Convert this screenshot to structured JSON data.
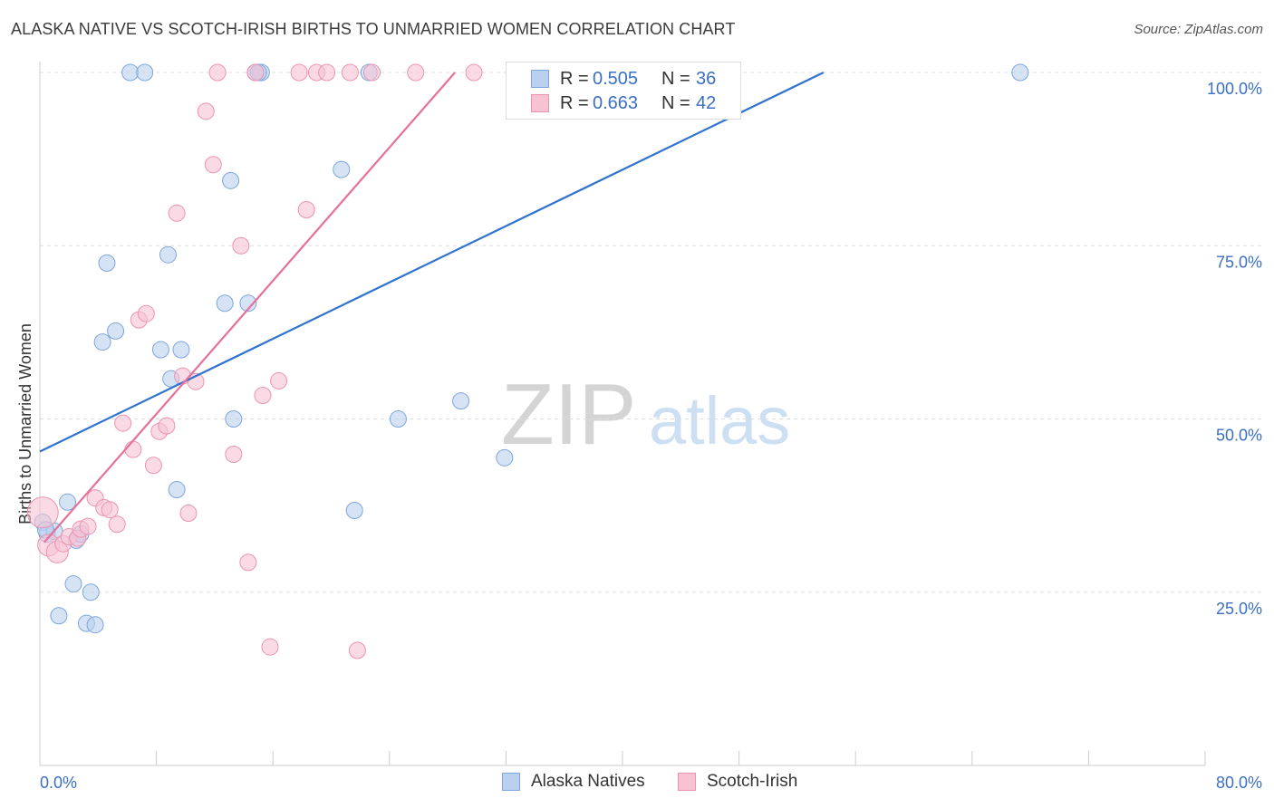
{
  "title": "ALASKA NATIVE VS SCOTCH-IRISH BIRTHS TO UNMARRIED WOMEN CORRELATION CHART",
  "source": "Source: ZipAtlas.com",
  "watermark": {
    "zip": "ZIP",
    "atlas": "atlas"
  },
  "legend_top": {
    "rows": [
      {
        "r_label": "R =",
        "r_value": "0.505",
        "n_label": "N =",
        "n_value": "36"
      },
      {
        "r_label": "R =",
        "r_value": "0.663",
        "n_label": "N =",
        "n_value": "42"
      }
    ]
  },
  "legend_bottom": {
    "items": [
      {
        "label": "Alaska Natives"
      },
      {
        "label": "Scotch-Irish"
      }
    ]
  },
  "colors": {
    "blue_fill": "#b9d0ef",
    "blue_stroke": "#7da6dc",
    "blue_line": "#2f73d0",
    "pink_fill": "#f7c3d3",
    "pink_stroke": "#ec93b0",
    "pink_line": "#e6709a",
    "tick_label": "#3a6fc4",
    "grid": "#dddddd"
  },
  "chart_data": {
    "type": "scatter",
    "title": "ALASKA NATIVE VS SCOTCH-IRISH BIRTHS TO UNMARRIED WOMEN CORRELATION CHART",
    "xlabel": "",
    "ylabel": "Births to Unmarried Women",
    "xlim": [
      0,
      80
    ],
    "ylim": [
      0,
      102
    ],
    "x_tick_labels": [
      "0.0%",
      "80.0%"
    ],
    "y_ticks": [
      25,
      50,
      75,
      100
    ],
    "y_tick_labels": [
      "25.0%",
      "50.0%",
      "75.0%",
      "100.0%"
    ],
    "grid": true,
    "series": [
      {
        "name": "Alaska Natives",
        "color": "blue",
        "r": 0.505,
        "n": 36,
        "trend": {
          "x1": 0.0,
          "y1": 45.3,
          "x2": 53.8,
          "y2": 100.0
        },
        "points": [
          {
            "x": 0.2,
            "y": 35.1,
            "size": 9
          },
          {
            "x": 0.5,
            "y": 33.4,
            "size": 9
          },
          {
            "x": 1.0,
            "y": 33.8,
            "size": 9
          },
          {
            "x": 1.3,
            "y": 21.6,
            "size": 9
          },
          {
            "x": 1.9,
            "y": 38.0,
            "size": 9
          },
          {
            "x": 2.3,
            "y": 26.2,
            "size": 9
          },
          {
            "x": 2.5,
            "y": 32.5,
            "size": 9
          },
          {
            "x": 2.8,
            "y": 33.4,
            "size": 9
          },
          {
            "x": 3.2,
            "y": 20.5,
            "size": 9
          },
          {
            "x": 3.5,
            "y": 25.0,
            "size": 9
          },
          {
            "x": 3.8,
            "y": 20.3,
            "size": 9
          },
          {
            "x": 4.3,
            "y": 61.1,
            "size": 9
          },
          {
            "x": 4.6,
            "y": 72.5,
            "size": 9
          },
          {
            "x": 5.2,
            "y": 62.7,
            "size": 9
          },
          {
            "x": 6.2,
            "y": 100.0,
            "size": 9
          },
          {
            "x": 7.2,
            "y": 100.0,
            "size": 9
          },
          {
            "x": 8.3,
            "y": 60.0,
            "size": 9
          },
          {
            "x": 8.8,
            "y": 73.7,
            "size": 9
          },
          {
            "x": 9.0,
            "y": 55.8,
            "size": 9
          },
          {
            "x": 9.4,
            "y": 39.8,
            "size": 9
          },
          {
            "x": 9.7,
            "y": 60.0,
            "size": 9
          },
          {
            "x": 12.7,
            "y": 66.7,
            "size": 9
          },
          {
            "x": 13.1,
            "y": 84.4,
            "size": 9
          },
          {
            "x": 13.3,
            "y": 50.0,
            "size": 9
          },
          {
            "x": 14.3,
            "y": 66.7,
            "size": 9
          },
          {
            "x": 14.8,
            "y": 100.0,
            "size": 9
          },
          {
            "x": 15.2,
            "y": 100.0,
            "size": 9
          },
          {
            "x": 20.7,
            "y": 86.0,
            "size": 9
          },
          {
            "x": 21.6,
            "y": 36.8,
            "size": 9
          },
          {
            "x": 22.6,
            "y": 100.0,
            "size": 9
          },
          {
            "x": 24.6,
            "y": 50.0,
            "size": 9
          },
          {
            "x": 28.9,
            "y": 52.6,
            "size": 9
          },
          {
            "x": 31.9,
            "y": 44.4,
            "size": 9
          },
          {
            "x": 67.3,
            "y": 100.0,
            "size": 9
          },
          {
            "x": 0.4,
            "y": 34.0,
            "size": 9
          },
          {
            "x": 15.0,
            "y": 100.0,
            "size": 9
          }
        ]
      },
      {
        "name": "Scotch-Irish",
        "color": "pink",
        "r": 0.663,
        "n": 42,
        "trend": {
          "x1": 0.3,
          "y1": 32.2,
          "x2": 28.5,
          "y2": 100.0
        },
        "points": [
          {
            "x": 0.2,
            "y": 36.5,
            "size": 17
          },
          {
            "x": 0.6,
            "y": 31.8,
            "size": 12
          },
          {
            "x": 1.2,
            "y": 30.8,
            "size": 12
          },
          {
            "x": 1.6,
            "y": 32.0,
            "size": 9
          },
          {
            "x": 2.0,
            "y": 33.0,
            "size": 9
          },
          {
            "x": 2.6,
            "y": 32.8,
            "size": 9
          },
          {
            "x": 2.8,
            "y": 34.1,
            "size": 9
          },
          {
            "x": 3.3,
            "y": 34.5,
            "size": 9
          },
          {
            "x": 3.8,
            "y": 38.6,
            "size": 9
          },
          {
            "x": 4.4,
            "y": 37.2,
            "size": 9
          },
          {
            "x": 4.8,
            "y": 36.9,
            "size": 9
          },
          {
            "x": 5.3,
            "y": 34.8,
            "size": 9
          },
          {
            "x": 5.7,
            "y": 49.4,
            "size": 9
          },
          {
            "x": 6.4,
            "y": 45.6,
            "size": 9
          },
          {
            "x": 6.8,
            "y": 64.3,
            "size": 9
          },
          {
            "x": 7.3,
            "y": 65.2,
            "size": 9
          },
          {
            "x": 7.8,
            "y": 43.3,
            "size": 9
          },
          {
            "x": 8.2,
            "y": 48.2,
            "size": 9
          },
          {
            "x": 8.7,
            "y": 49.0,
            "size": 9
          },
          {
            "x": 9.4,
            "y": 79.7,
            "size": 9
          },
          {
            "x": 9.8,
            "y": 56.2,
            "size": 9
          },
          {
            "x": 10.2,
            "y": 36.4,
            "size": 9
          },
          {
            "x": 10.7,
            "y": 55.4,
            "size": 9
          },
          {
            "x": 11.4,
            "y": 94.4,
            "size": 9
          },
          {
            "x": 11.9,
            "y": 86.7,
            "size": 9
          },
          {
            "x": 12.2,
            "y": 100.0,
            "size": 9
          },
          {
            "x": 13.3,
            "y": 44.9,
            "size": 9
          },
          {
            "x": 13.8,
            "y": 75.0,
            "size": 9
          },
          {
            "x": 14.3,
            "y": 29.3,
            "size": 9
          },
          {
            "x": 14.8,
            "y": 100.0,
            "size": 9
          },
          {
            "x": 15.3,
            "y": 53.4,
            "size": 9
          },
          {
            "x": 15.8,
            "y": 17.1,
            "size": 9
          },
          {
            "x": 16.4,
            "y": 55.5,
            "size": 9
          },
          {
            "x": 17.8,
            "y": 100.0,
            "size": 9
          },
          {
            "x": 18.3,
            "y": 80.2,
            "size": 9
          },
          {
            "x": 19.0,
            "y": 100.0,
            "size": 9
          },
          {
            "x": 19.7,
            "y": 100.0,
            "size": 9
          },
          {
            "x": 21.3,
            "y": 100.0,
            "size": 9
          },
          {
            "x": 21.8,
            "y": 16.6,
            "size": 9
          },
          {
            "x": 22.8,
            "y": 100.0,
            "size": 9
          },
          {
            "x": 25.8,
            "y": 100.0,
            "size": 9
          },
          {
            "x": 29.8,
            "y": 100.0,
            "size": 9
          }
        ]
      }
    ]
  }
}
